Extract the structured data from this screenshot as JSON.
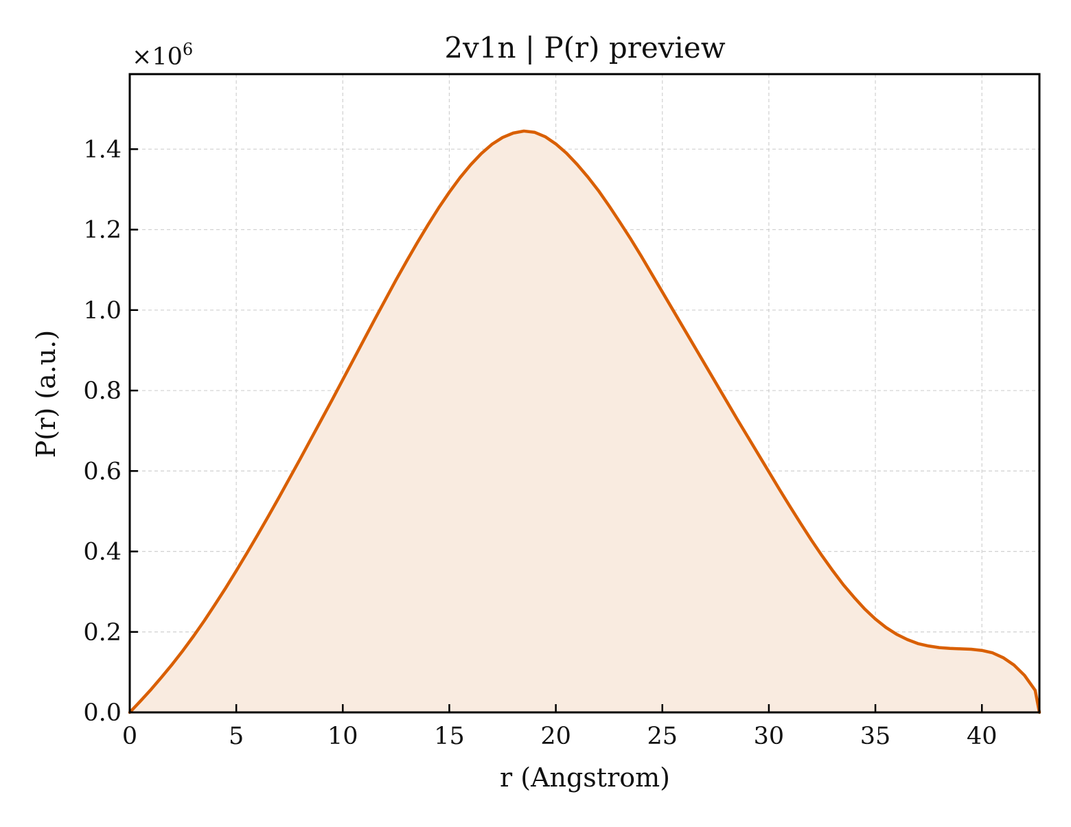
{
  "chart_data": {
    "type": "area",
    "title": "2v1n | P(r) preview",
    "xlabel": "r (Angstrom)",
    "ylabel": "P(r) (a.u.)",
    "y_multiplier_base": "×10",
    "y_multiplier_exp": "6",
    "xlim": [
      0,
      42.7
    ],
    "ylim": [
      0,
      1.5865
    ],
    "x_ticks": [
      0,
      5,
      10,
      15,
      20,
      25,
      30,
      35,
      40
    ],
    "x_tick_labels": [
      "0",
      "5",
      "10",
      "15",
      "20",
      "25",
      "30",
      "35",
      "40"
    ],
    "y_ticks": [
      0.0,
      0.2,
      0.4,
      0.6,
      0.8,
      1.0,
      1.2,
      1.4
    ],
    "y_tick_labels": [
      "0.0",
      "0.2",
      "0.4",
      "0.6",
      "0.8",
      "1.0",
      "1.2",
      "1.4"
    ],
    "grid": true,
    "line_color": "#d95f02",
    "fill_color": "#f9ebe0",
    "series": [
      {
        "x": [
          0,
          0.5,
          1,
          1.5,
          2,
          2.5,
          3,
          3.5,
          4,
          4.5,
          5,
          5.5,
          6,
          6.5,
          7,
          7.5,
          8,
          8.5,
          9,
          9.5,
          10,
          10.5,
          11,
          11.5,
          12,
          12.5,
          13,
          13.5,
          14,
          14.5,
          15,
          15.5,
          16,
          16.5,
          17,
          17.5,
          18,
          18.5,
          19,
          19.5,
          20,
          20.5,
          21,
          21.5,
          22,
          22.5,
          23,
          23.5,
          24,
          24.5,
          25,
          25.5,
          26,
          26.5,
          27,
          27.5,
          28,
          28.5,
          29,
          29.5,
          30,
          30.5,
          31,
          31.5,
          32,
          32.5,
          33,
          33.5,
          34,
          34.5,
          35,
          35.5,
          36,
          36.5,
          37,
          37.5,
          38,
          38.5,
          39,
          39.5,
          40,
          40.5,
          41,
          41.5,
          42,
          42.5,
          42.7
        ],
        "y": [
          0.0,
          0.028,
          0.057,
          0.088,
          0.12,
          0.154,
          0.19,
          0.228,
          0.268,
          0.309,
          0.352,
          0.396,
          0.441,
          0.487,
          0.534,
          0.582,
          0.63,
          0.679,
          0.728,
          0.777,
          0.827,
          0.877,
          0.927,
          0.977,
          1.026,
          1.075,
          1.122,
          1.168,
          1.212,
          1.254,
          1.293,
          1.329,
          1.361,
          1.389,
          1.412,
          1.429,
          1.44,
          1.445,
          1.442,
          1.431,
          1.413,
          1.39,
          1.362,
          1.331,
          1.297,
          1.259,
          1.219,
          1.178,
          1.135,
          1.09,
          1.045,
          1.0,
          0.955,
          0.91,
          0.865,
          0.82,
          0.775,
          0.73,
          0.686,
          0.642,
          0.598,
          0.554,
          0.511,
          0.469,
          0.428,
          0.389,
          0.352,
          0.317,
          0.286,
          0.257,
          0.232,
          0.211,
          0.194,
          0.181,
          0.171,
          0.165,
          0.161,
          0.159,
          0.158,
          0.157,
          0.154,
          0.148,
          0.136,
          0.118,
          0.092,
          0.055,
          0.0
        ]
      }
    ]
  }
}
